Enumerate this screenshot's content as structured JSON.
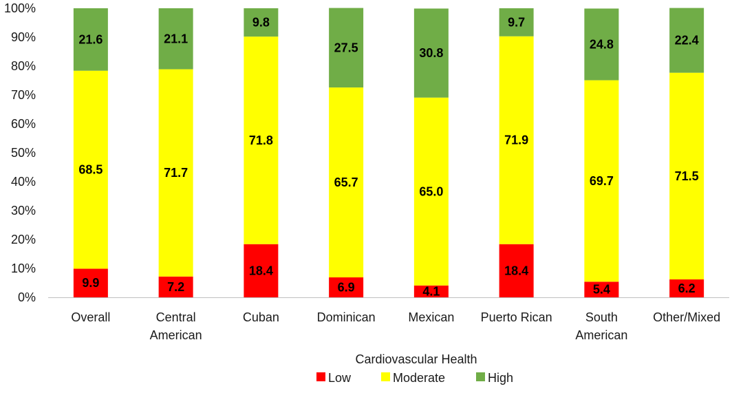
{
  "chart_data": {
    "type": "bar",
    "stacked": true,
    "percent": true,
    "categories": [
      "Overall",
      "Central American",
      "Cuban",
      "Dominican",
      "Mexican",
      "Puerto Rican",
      "South American",
      "Other/Mixed"
    ],
    "category_lines": [
      [
        "Overall"
      ],
      [
        "Central",
        "American"
      ],
      [
        "Cuban"
      ],
      [
        "Dominican"
      ],
      [
        "Mexican"
      ],
      [
        "Puerto Rican"
      ],
      [
        "South",
        "American"
      ],
      [
        "Other/Mixed"
      ]
    ],
    "series": [
      {
        "name": "Low",
        "color": "#ff0000",
        "label_color": "#000000",
        "values": [
          9.9,
          7.2,
          18.4,
          6.9,
          4.1,
          18.4,
          5.4,
          6.2
        ]
      },
      {
        "name": "Moderate",
        "color": "#ffff00",
        "label_color": "#000000",
        "values": [
          68.5,
          71.7,
          71.8,
          65.7,
          65.0,
          71.9,
          69.7,
          71.5
        ]
      },
      {
        "name": "High",
        "color": "#70ad47",
        "label_color": "#000000",
        "values": [
          21.6,
          21.1,
          9.8,
          27.5,
          30.8,
          9.7,
          24.8,
          22.4
        ]
      }
    ],
    "y_ticks": [
      "0%",
      "10%",
      "20%",
      "30%",
      "40%",
      "50%",
      "60%",
      "70%",
      "80%",
      "90%",
      "100%"
    ],
    "ylim": [
      0,
      100
    ],
    "title": "",
    "xlabel": "",
    "ylabel": "",
    "legend_title": "Cardiovascular Health",
    "legend_position": "bottom",
    "grid": false
  }
}
